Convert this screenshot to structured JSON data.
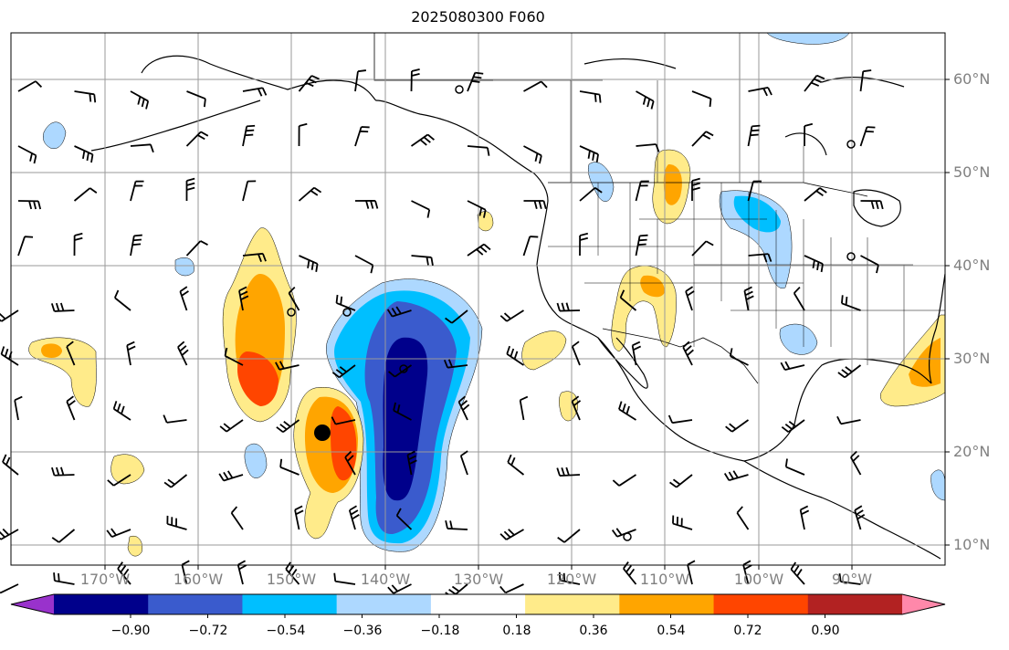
{
  "map": {
    "title": "2025080300 F060",
    "lat_labels": [
      "60°N",
      "50°N",
      "40°N",
      "30°N",
      "20°N",
      "10°N"
    ],
    "lon_labels": [
      "170°W",
      "160°W",
      "150°W",
      "140°W",
      "130°W",
      "120°W",
      "110°W",
      "100°W",
      "90°W"
    ],
    "extent": {
      "lon": [
        -180,
        -80
      ],
      "lat": [
        8,
        65
      ]
    },
    "features": [
      "coastlines",
      "country borders",
      "US state borders",
      "graticule",
      "wind barbs",
      "shaded contours"
    ],
    "center_marker": "storm-center-dot"
  },
  "colorbar": {
    "tick_labels": [
      "−0.90",
      "−0.72",
      "−0.54",
      "−0.36",
      "−0.18",
      "0.18",
      "0.36",
      "0.54",
      "0.72",
      "0.90"
    ],
    "colors": [
      "#9932CC",
      "#00008B",
      "#3A5BCD",
      "#00BFFF",
      "#ADD8FF",
      "#FFFFFF",
      "#FFEB8A",
      "#FFA500",
      "#FF4500",
      "#B22222",
      "#FF88AA"
    ],
    "extend": "both"
  }
}
